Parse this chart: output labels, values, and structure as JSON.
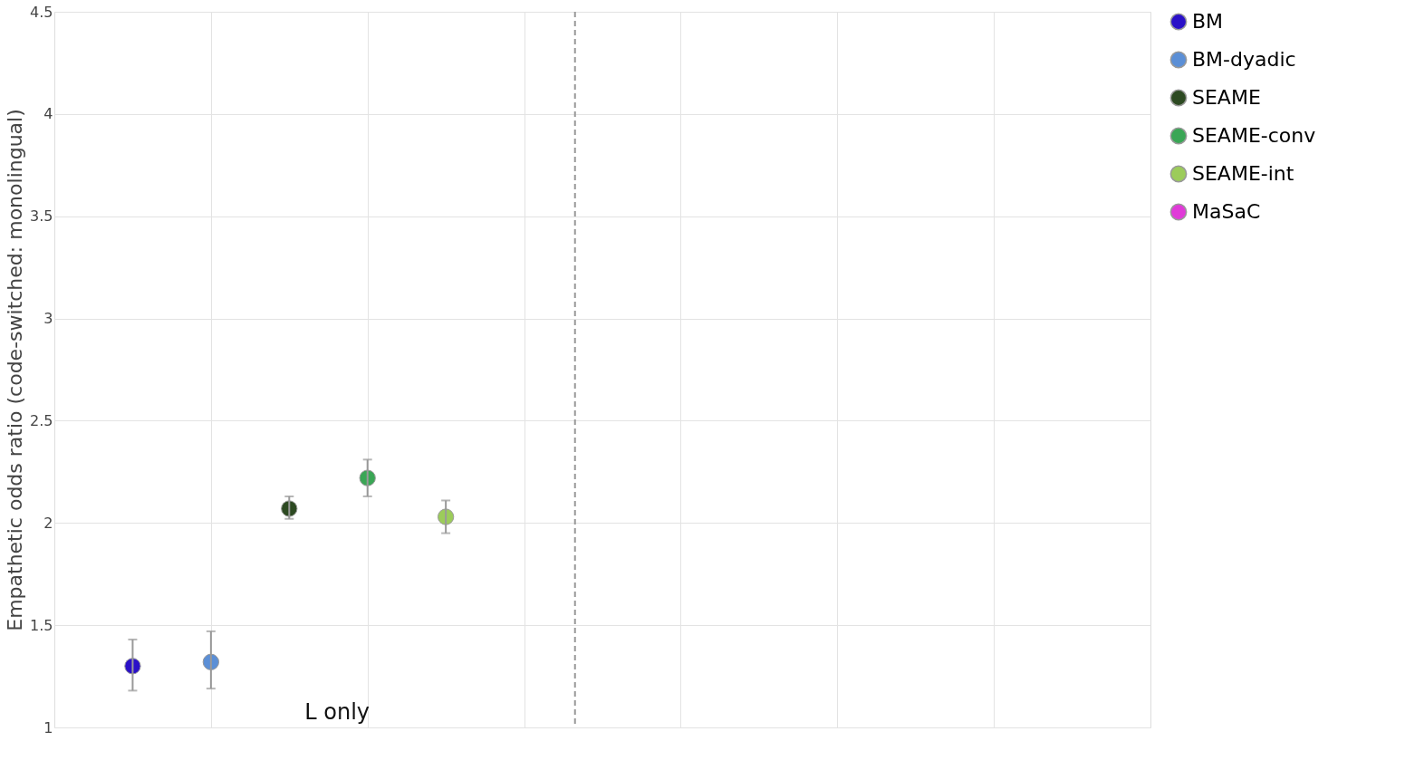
{
  "chart_data": {
    "type": "scatter",
    "ylabel": "Empathetic odds ratio (code-switched: monolingual)",
    "categories": [
      null,
      null,
      null,
      null,
      null,
      null,
      null,
      null,
      null,
      null,
      null,
      null,
      null
    ],
    "ylim": [
      1,
      4.5
    ],
    "yticks": [
      1,
      1.5,
      2,
      2.5,
      3,
      3.5,
      4,
      4.5
    ],
    "tick_labels": "y",
    "grid": true,
    "legend": "right",
    "marker": "circle",
    "series": [
      {
        "name": "BM",
        "color": "#2a10c8",
        "values": [
          1.3,
          null,
          null,
          null,
          null,
          null,
          null,
          null,
          null,
          null,
          null,
          null,
          null
        ],
        "errors": [
          [
            1.18,
            1.43
          ],
          null,
          null,
          null,
          null,
          null,
          null,
          null,
          null,
          null,
          null,
          null,
          null
        ]
      },
      {
        "name": "BM-dyadic",
        "color": "#5b8fd6",
        "values": [
          null,
          1.32,
          null,
          null,
          null,
          null,
          null,
          null,
          null,
          null,
          null,
          null,
          null
        ],
        "errors": [
          null,
          [
            1.19,
            1.47
          ],
          null,
          null,
          null,
          null,
          null,
          null,
          null,
          null,
          null,
          null,
          null
        ]
      },
      {
        "name": "SEAME",
        "color": "#2d4a22",
        "values": [
          null,
          null,
          2.07,
          null,
          null,
          null,
          null,
          null,
          null,
          null,
          null,
          null,
          null
        ],
        "errors": [
          null,
          null,
          [
            2.02,
            2.13
          ],
          null,
          null,
          null,
          null,
          null,
          null,
          null,
          null,
          null,
          null
        ]
      },
      {
        "name": "SEAME-conv",
        "color": "#3aa655",
        "values": [
          null,
          null,
          null,
          2.22,
          null,
          null,
          null,
          null,
          null,
          null,
          null,
          null,
          null
        ],
        "errors": [
          null,
          null,
          null,
          [
            2.13,
            2.31
          ],
          null,
          null,
          null,
          null,
          null,
          null,
          null,
          null,
          null
        ]
      },
      {
        "name": "SEAME-int",
        "color": "#9ccc5a",
        "values": [
          null,
          null,
          null,
          null,
          2.03,
          null,
          null,
          null,
          null,
          null,
          null,
          null,
          null
        ],
        "errors": [
          null,
          null,
          null,
          null,
          [
            1.95,
            2.11
          ],
          null,
          null,
          null,
          null,
          null,
          null,
          null,
          null
        ]
      },
      {
        "name": "MaSaC",
        "color": "#e03ad8",
        "values": [
          null,
          null,
          null,
          null,
          null,
          null,
          null,
          null,
          null,
          null,
          null,
          null,
          null
        ]
      }
    ],
    "annotations": [
      "L only"
    ]
  }
}
